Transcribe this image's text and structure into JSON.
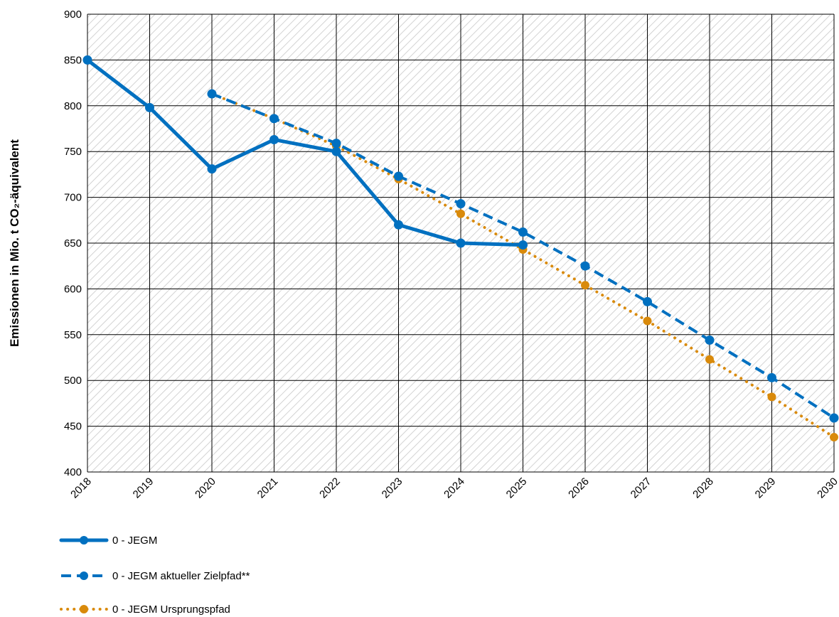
{
  "chart_data": {
    "type": "line",
    "title": "",
    "xlabel": "",
    "ylabel": "Emissionen in Mio. t CO₂-äquivalent",
    "ylim": [
      400,
      900
    ],
    "yticks": [
      400,
      450,
      500,
      550,
      600,
      650,
      700,
      750,
      800,
      850,
      900
    ],
    "grid": true,
    "legend_position": "bottom-left",
    "categories": [
      "2018",
      "2019",
      "2020",
      "2021",
      "2022",
      "2023",
      "2024",
      "2025",
      "2026",
      "2027",
      "2028",
      "2029",
      "2030"
    ],
    "series": [
      {
        "name": "0 - JEGM",
        "style": "solid",
        "color": "#0070C0",
        "values": [
          850,
          798,
          731,
          763,
          750,
          670,
          650,
          648,
          null,
          null,
          null,
          null,
          null
        ]
      },
      {
        "name": "0 - JEGM aktueller Zielpfad**",
        "style": "dashed",
        "color": "#0070C0",
        "values": [
          null,
          null,
          813,
          786,
          759,
          723,
          693,
          662,
          625,
          586,
          544,
          503,
          459
        ]
      },
      {
        "name": "0 - JEGM Ursprungspfad",
        "style": "dotted",
        "color": "#D98A0B",
        "values": [
          null,
          null,
          813,
          786,
          756,
          720,
          682,
          643,
          604,
          565,
          523,
          482,
          438
        ]
      }
    ]
  }
}
